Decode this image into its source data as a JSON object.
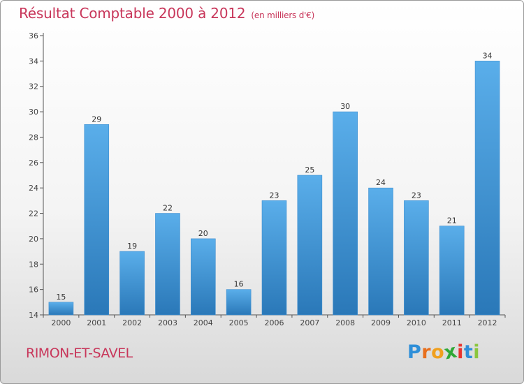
{
  "chart_data": {
    "type": "bar",
    "title": "Résultat Comptable 2000 à 2012",
    "unit_label": "(en milliers d'€)",
    "categories": [
      "2000",
      "2001",
      "2002",
      "2003",
      "2004",
      "2005",
      "2006",
      "2007",
      "2008",
      "2009",
      "2010",
      "2011",
      "2012"
    ],
    "values": [
      15,
      29,
      19,
      22,
      20,
      16,
      23,
      25,
      30,
      24,
      23,
      21,
      34
    ],
    "ylim": [
      14,
      36
    ],
    "yticks": [
      14,
      16,
      18,
      20,
      22,
      24,
      26,
      28,
      30,
      32,
      34,
      36
    ],
    "grid": false,
    "bar_color": "#4a9fe0"
  },
  "place_name": "RIMON-ET-SAVEL",
  "logo": {
    "letters": [
      "P",
      "r",
      "o",
      "x",
      "i",
      "t",
      "i"
    ],
    "colors": [
      "#2f8fd8",
      "#e8701e",
      "#f0a01e",
      "#2fa836",
      "#e8342e",
      "#2f8fd8",
      "#8bc63e"
    ]
  },
  "colors": {
    "title": "#c8365a",
    "axis": "#555555"
  }
}
